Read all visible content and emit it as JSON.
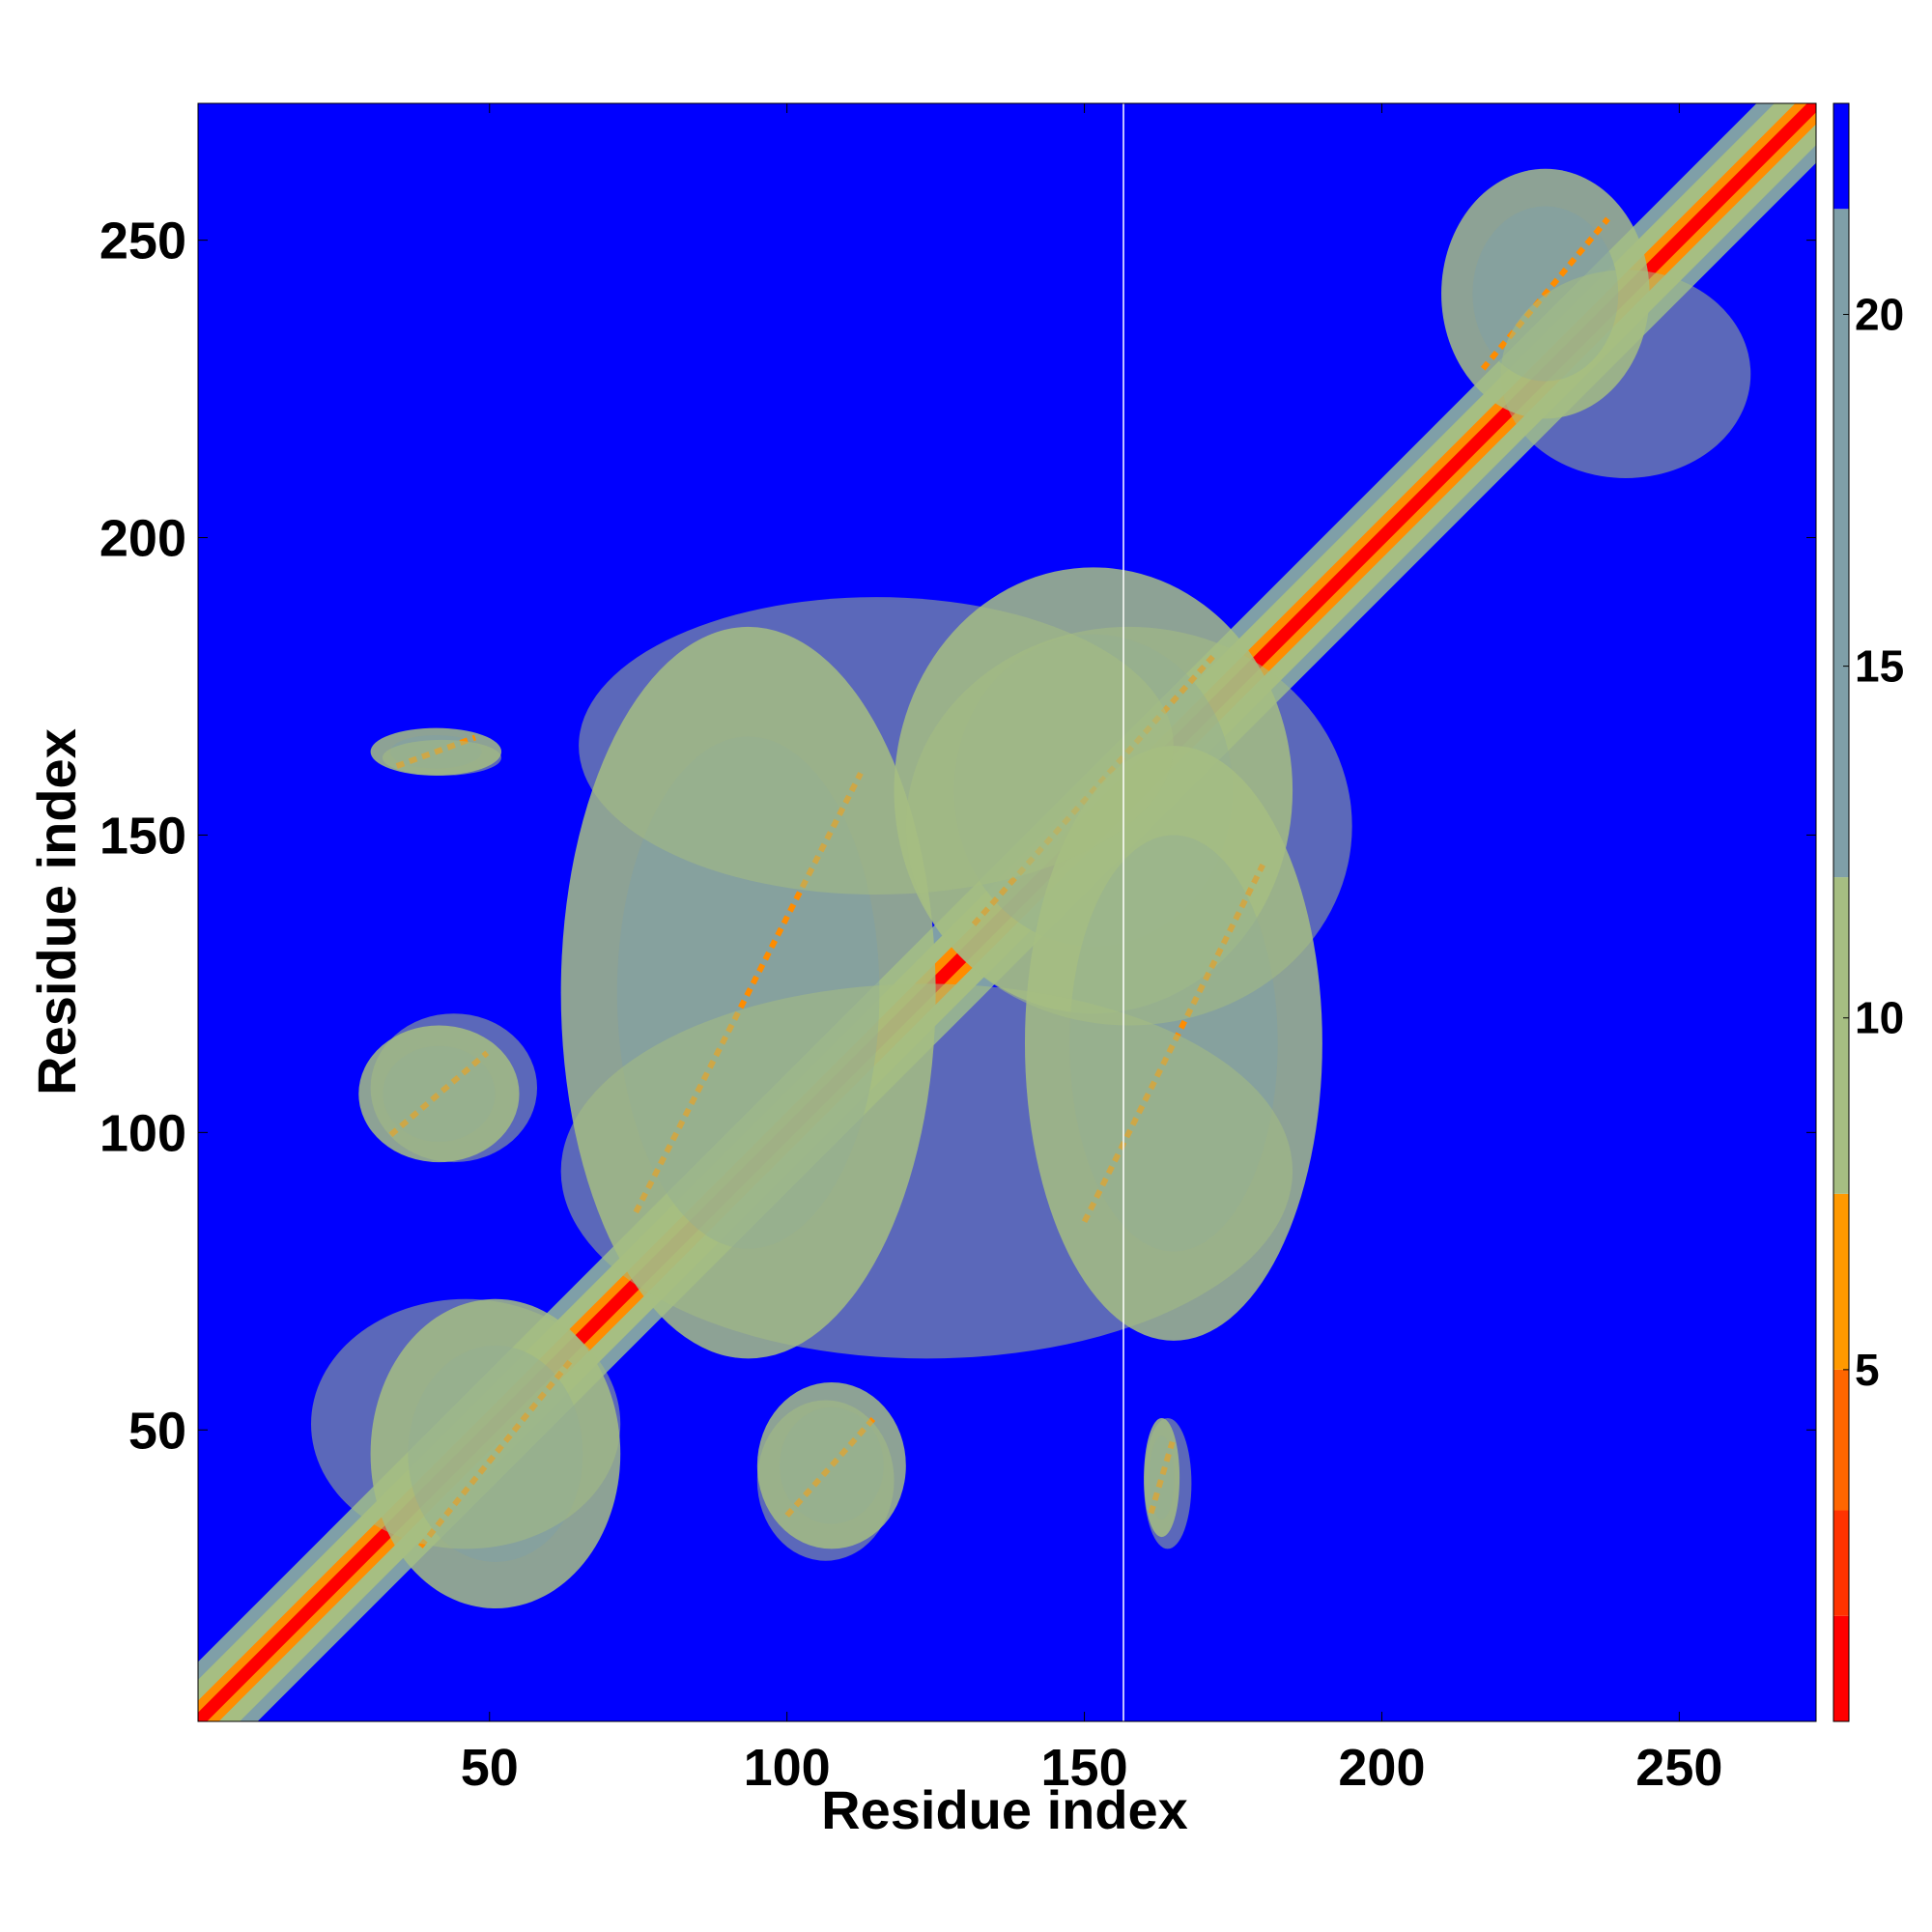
{
  "chart_data": {
    "type": "heatmap",
    "title": "",
    "xlabel": "Residue index",
    "ylabel": "Residue index",
    "xlim": [
      1,
      273
    ],
    "ylim": [
      1,
      273
    ],
    "x_ticks": [
      50,
      100,
      150,
      200,
      250
    ],
    "y_ticks": [
      50,
      100,
      150,
      200,
      250
    ],
    "colorbar": {
      "ticks": [
        5,
        10,
        15,
        20
      ],
      "range": [
        0,
        23
      ],
      "colors": [
        "#ff0000",
        "#ff3300",
        "#ff6600",
        "#ff9900",
        "#a6be82",
        "#7f9fa8",
        "#0000ff"
      ],
      "boundaries": [
        0,
        1.5,
        3,
        5,
        7.5,
        12,
        21.5,
        23
      ]
    },
    "diagonal_band": {
      "from": 1,
      "to": 273
    },
    "off_diagonal_contacts": [
      {
        "x": [
          30,
          72
        ],
        "y": [
          20,
          72
        ]
      },
      {
        "x": [
          95,
          120
        ],
        "y": [
          30,
          58
        ]
      },
      {
        "x": [
          160,
          166
        ],
        "y": [
          32,
          52
        ]
      },
      {
        "x": [
          28,
          55
        ],
        "y": [
          95,
          118
        ]
      },
      {
        "x": [
          30,
          52
        ],
        "y": [
          160,
          168
        ]
      },
      {
        "x": [
          62,
          125
        ],
        "y": [
          62,
          185
        ]
      },
      {
        "x": [
          118,
          185
        ],
        "y": [
          120,
          195
        ]
      },
      {
        "x": [
          140,
          190
        ],
        "y": [
          65,
          165
        ]
      },
      {
        "x": [
          210,
          245
        ],
        "y": [
          220,
          262
        ]
      }
    ],
    "colors": {
      "background": "#0000ff",
      "strong": "#ff0000",
      "medium": "#ff8c00",
      "weak": "#a6be82",
      "far": "#7f9fa8"
    }
  }
}
